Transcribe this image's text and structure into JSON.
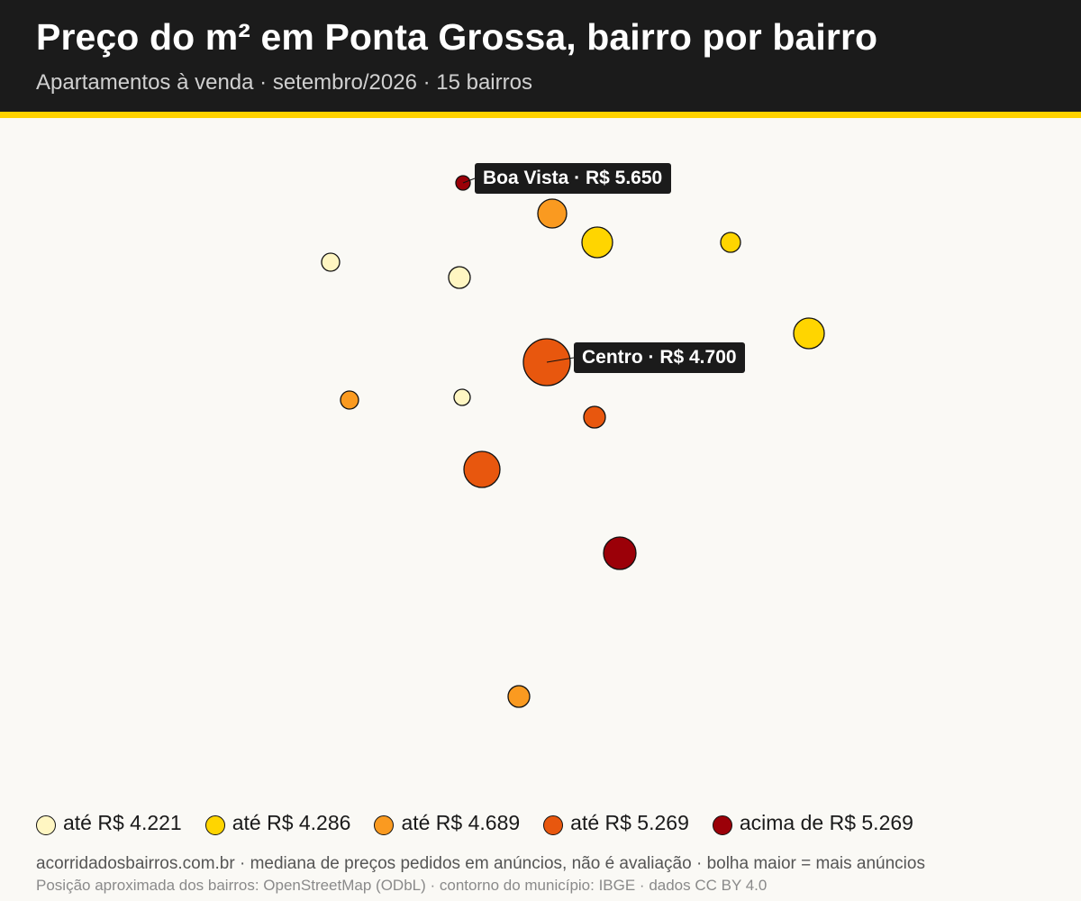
{
  "header": {
    "title": "Preço do m² em Ponta Grossa, bairro por bairro",
    "subtitle": "Apartamentos à venda · setembro/2026 · 15 bairros"
  },
  "colors": {
    "bin1": "#FFF6C2",
    "bin2": "#FFD500",
    "bin3": "#FA9A20",
    "bin4": "#E8570E",
    "bin5": "#9B0008",
    "accent": "#FFD200",
    "header_bg": "#1B1B1B",
    "callout_bg": "#1B1B1B"
  },
  "map": {
    "callouts": [
      {
        "text": "Boa Vista · R$ 5.650",
        "bubble": 0
      },
      {
        "text": "Centro · R$ 4.700",
        "bubble": 7
      }
    ]
  },
  "legend": [
    {
      "label": "até R$ 4.221",
      "color": "#FFF6C2"
    },
    {
      "label": "até R$ 4.286",
      "color": "#FFD500"
    },
    {
      "label": "até R$ 4.689",
      "color": "#FA9A20"
    },
    {
      "label": "até R$ 5.269",
      "color": "#E8570E"
    },
    {
      "label": "acima de R$ 5.269",
      "color": "#9B0008"
    }
  ],
  "footer": {
    "line1": "acorridadosbairros.com.br · mediana de preços pedidos em anúncios, não é avaliação · bolha maior = mais anúncios",
    "line2": "Posição aproximada dos bairros: OpenStreetMap (ODbL) · contorno do município: IBGE · dados CC BY 4.0"
  }
}
